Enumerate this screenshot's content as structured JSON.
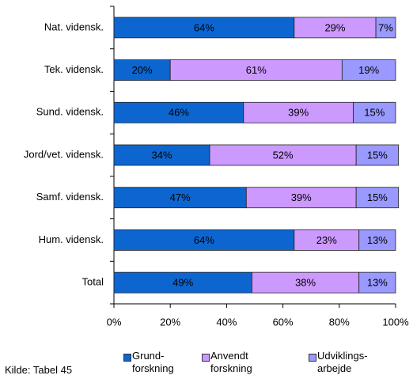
{
  "chart_data": {
    "type": "stacked_barh",
    "categories": [
      "Nat. vidensk.",
      "Tek. vidensk.",
      "Sund. vidensk.",
      "Jord/vet. vidensk.",
      "Samf. vidensk.",
      "Hum. vidensk.",
      "Total"
    ],
    "series": [
      {
        "name": "Grund-\nforskning",
        "color": "#0d66d0",
        "values": [
          64,
          20,
          46,
          34,
          47,
          64,
          49
        ],
        "value_labels": [
          "64%",
          "20%",
          "46%",
          "34%",
          "47%",
          "64%",
          "49%"
        ]
      },
      {
        "name": "Anvendt\nforskning",
        "color": "#cc99ff",
        "values": [
          29,
          61,
          39,
          52,
          39,
          23,
          38
        ],
        "value_labels": [
          "29%",
          "61%",
          "39%",
          "52%",
          "39%",
          "23%",
          "38%"
        ]
      },
      {
        "name": "Udviklings-\narbejde",
        "color": "#9999ff",
        "values": [
          7,
          19,
          15,
          15,
          15,
          13,
          13
        ],
        "value_labels": [
          "7%",
          "19%",
          "15%",
          "15%",
          "15%",
          "13%",
          "13%"
        ]
      }
    ],
    "xlim": [
      0,
      100
    ],
    "xticks": [
      {
        "value": 0,
        "label": "0%"
      },
      {
        "value": 20,
        "label": "20%"
      },
      {
        "value": 40,
        "label": "40%"
      },
      {
        "value": 60,
        "label": "60%"
      },
      {
        "value": 80,
        "label": "80%"
      },
      {
        "value": 100,
        "label": "100%"
      }
    ],
    "source": "Kilde: Tabel 45"
  }
}
